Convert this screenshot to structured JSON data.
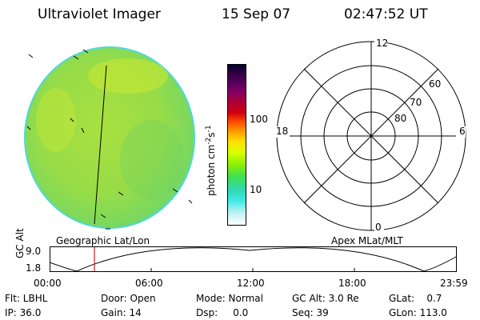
{
  "header": {
    "instrument": "Ultraviolet Imager",
    "date": "15 Sep 07",
    "time": "02:47:52 UT"
  },
  "image_panel": {
    "caption": "Geographic Lat/Lon"
  },
  "colorbar": {
    "unit_label": "photon cm",
    "unit_exp1": "-2",
    "unit_s": "s",
    "unit_exp2": "-1",
    "ticks": [
      "100",
      "10"
    ],
    "colors": [
      "#000033",
      "#300040",
      "#5a0060",
      "#8b0060",
      "#b00030",
      "#d00010",
      "#ff5000",
      "#ffa000",
      "#ffe000",
      "#d8ff00",
      "#90f000",
      "#40e050",
      "#30d8b0",
      "#40e8e8",
      "#b8f0f0",
      "#ffffff"
    ]
  },
  "polar_panel": {
    "caption": "Apex MLat/MLT",
    "mlt_labels": [
      "12",
      "18",
      "6",
      "0"
    ],
    "mlat_labels": [
      "60",
      "70",
      "80"
    ]
  },
  "altitude_plot": {
    "ylabel": "GC Alt",
    "yticks": [
      "9.0",
      "1.8"
    ],
    "xticks": [
      "00:00",
      "06:00",
      "12:00",
      "18:00",
      "23:59"
    ]
  },
  "footer": {
    "row1": {
      "flt": "Flt: LBHL",
      "door": "Door: Open",
      "mode": "Mode: Normal",
      "gcalt": "GC Alt: 3.0 Re",
      "glat": "GLat:    0.7"
    },
    "row2": {
      "ip": "IP: 36.0",
      "gain": "Gain: 14",
      "dsp": "Dsp:     0.0",
      "seq": "Seq: 39",
      "glon": "GLon: 113.0"
    }
  }
}
